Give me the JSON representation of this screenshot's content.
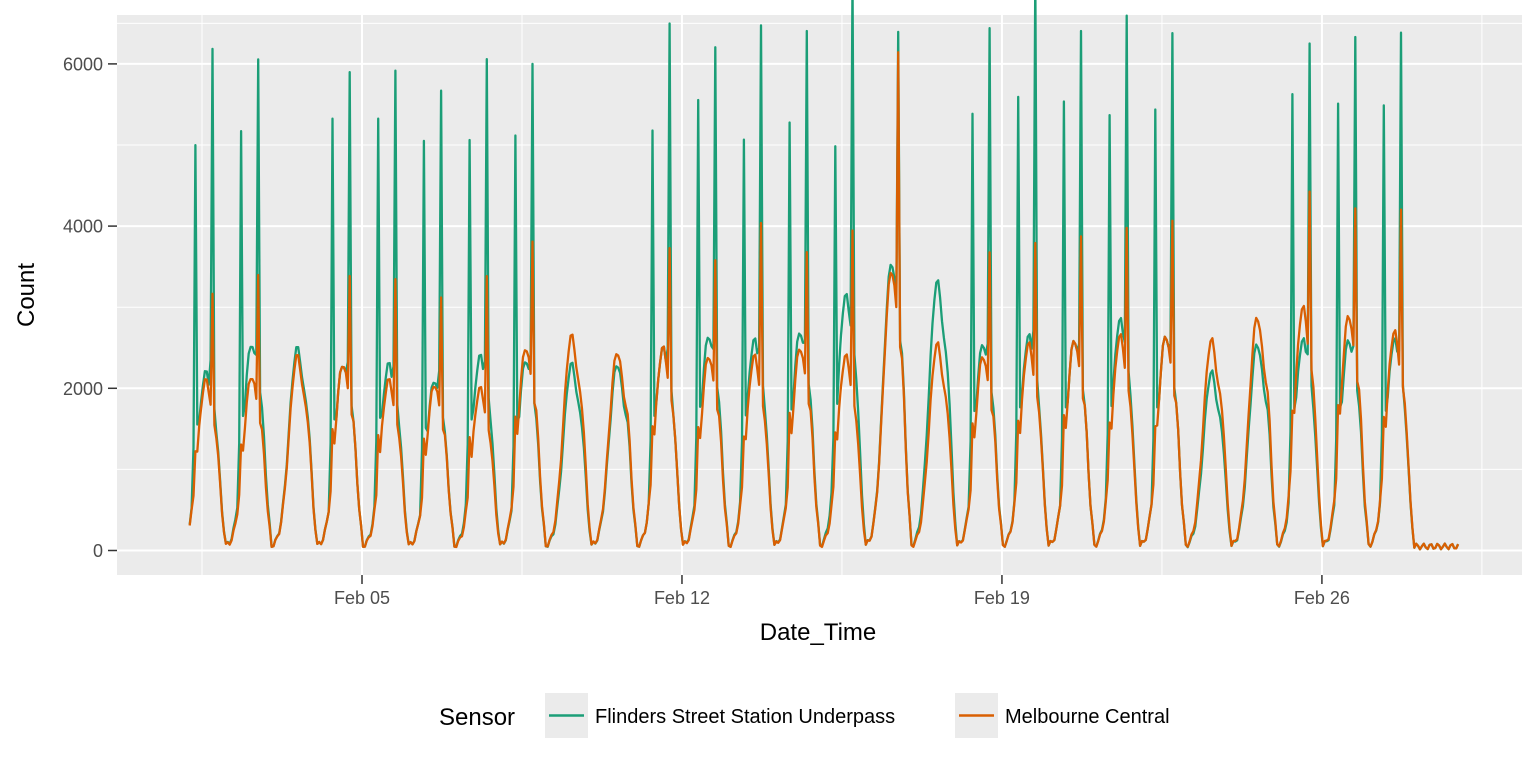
{
  "chart_data": {
    "type": "line",
    "xlabel": "Date_Time",
    "ylabel": "Count",
    "x_ticks": [
      "Feb 05",
      "Feb 12",
      "Feb 19",
      "Feb 26"
    ],
    "y_ticks": [
      "0",
      "2000",
      "4000",
      "6000"
    ],
    "ylim": [
      -200,
      6600
    ],
    "grid": true,
    "legend": {
      "title": "Sensor",
      "placement": "bottom"
    },
    "x_range_days": [
      0.23,
      29.7
    ],
    "series": [
      {
        "name": "Flinders Street Station Underpass",
        "color": "#1b9e77",
        "daily_peaks": [
          {
            "am": 4450,
            "mid": 2200,
            "pm": 5520
          },
          {
            "am": 4460,
            "mid": 2550,
            "pm": 5250
          },
          {
            "am": 0,
            "mid": 2500,
            "pm": 0
          },
          {
            "am": 4680,
            "mid": 2300,
            "pm": 5220
          },
          {
            "am": 4750,
            "mid": 2300,
            "pm": 5170
          },
          {
            "am": 4460,
            "mid": 2100,
            "pm": 5080
          },
          {
            "am": 4460,
            "mid": 2400,
            "pm": 5270
          },
          {
            "am": 4460,
            "mid": 2350,
            "pm": 5300
          },
          {
            "am": 0,
            "mid": 2300,
            "pm": 0
          },
          {
            "am": 0,
            "mid": 2300,
            "pm": 0
          },
          {
            "am": 4550,
            "mid": 2500,
            "pm": 5700
          },
          {
            "am": 4820,
            "mid": 2650,
            "pm": 5350
          },
          {
            "am": 4410,
            "mid": 2600,
            "pm": 5620
          },
          {
            "am": 4530,
            "mid": 2700,
            "pm": 5540
          },
          {
            "am": 4180,
            "mid": 3150,
            "pm": 5960
          },
          {
            "am": 0,
            "mid": 3550,
            "pm": 5040
          },
          {
            "am": 0,
            "mid": 3320,
            "pm": 0
          },
          {
            "am": 4680,
            "mid": 2550,
            "pm": 5660
          },
          {
            "am": 4920,
            "mid": 2650,
            "pm": 6300
          },
          {
            "am": 4820,
            "mid": 2600,
            "pm": 5590
          },
          {
            "am": 4640,
            "mid": 2850,
            "pm": 5620
          },
          {
            "am": 4710,
            "mid": 2650,
            "pm": 5530
          },
          {
            "am": 0,
            "mid": 2200,
            "pm": 0
          },
          {
            "am": 0,
            "mid": 2550,
            "pm": 0
          },
          {
            "am": 4960,
            "mid": 2600,
            "pm": 5390
          },
          {
            "am": 4800,
            "mid": 2600,
            "pm": 5500
          },
          {
            "am": 4820,
            "mid": 2600,
            "pm": 5540
          },
          {
            "am": 0,
            "mid": 0,
            "pm": 0
          },
          {
            "am": 0,
            "mid": 0,
            "pm": 0
          },
          {
            "am": 0,
            "mid": 0,
            "pm": 0
          }
        ],
        "night_min": 50
      },
      {
        "name": "Melbourne Central",
        "color": "#d95f02",
        "daily_peaks": [
          {
            "am": 700,
            "mid": 2100,
            "pm": 2250
          },
          {
            "am": 700,
            "mid": 2150,
            "pm": 2550
          },
          {
            "am": 0,
            "mid": 2400,
            "pm": 0
          },
          {
            "am": 850,
            "mid": 2300,
            "pm": 2450
          },
          {
            "am": 900,
            "mid": 2100,
            "pm": 2450
          },
          {
            "am": 800,
            "mid": 2050,
            "pm": 2300
          },
          {
            "am": 900,
            "mid": 2000,
            "pm": 2550
          },
          {
            "am": 950,
            "mid": 2500,
            "pm": 2800
          },
          {
            "am": 0,
            "mid": 2650,
            "pm": 0
          },
          {
            "am": 0,
            "mid": 2450,
            "pm": 0
          },
          {
            "am": 900,
            "mid": 2500,
            "pm": 2650
          },
          {
            "am": 850,
            "mid": 2400,
            "pm": 2600
          },
          {
            "am": 800,
            "mid": 2400,
            "pm": 3050
          },
          {
            "am": 1000,
            "mid": 2500,
            "pm": 2650
          },
          {
            "am": 850,
            "mid": 2400,
            "pm": 2950
          },
          {
            "am": 0,
            "mid": 3450,
            "pm": 4820
          },
          {
            "am": 0,
            "mid": 2550,
            "pm": 0
          },
          {
            "am": 900,
            "mid": 2400,
            "pm": 2700
          },
          {
            "am": 950,
            "mid": 2550,
            "pm": 2700
          },
          {
            "am": 950,
            "mid": 2600,
            "pm": 2800
          },
          {
            "am": 900,
            "mid": 2650,
            "pm": 2850
          },
          {
            "am": 800,
            "mid": 2650,
            "pm": 2980
          },
          {
            "am": 0,
            "mid": 2600,
            "pm": 0
          },
          {
            "am": 0,
            "mid": 2880,
            "pm": 0
          },
          {
            "am": 950,
            "mid": 3000,
            "pm": 3150
          },
          {
            "am": 1000,
            "mid": 2900,
            "pm": 3000
          },
          {
            "am": 950,
            "mid": 2700,
            "pm": 3080
          },
          {
            "am": 0,
            "mid": 0,
            "pm": 0
          },
          {
            "am": 0,
            "mid": 0,
            "pm": 0
          },
          {
            "am": 0,
            "mid": 0,
            "pm": 0
          }
        ],
        "night_min": 50
      }
    ]
  }
}
